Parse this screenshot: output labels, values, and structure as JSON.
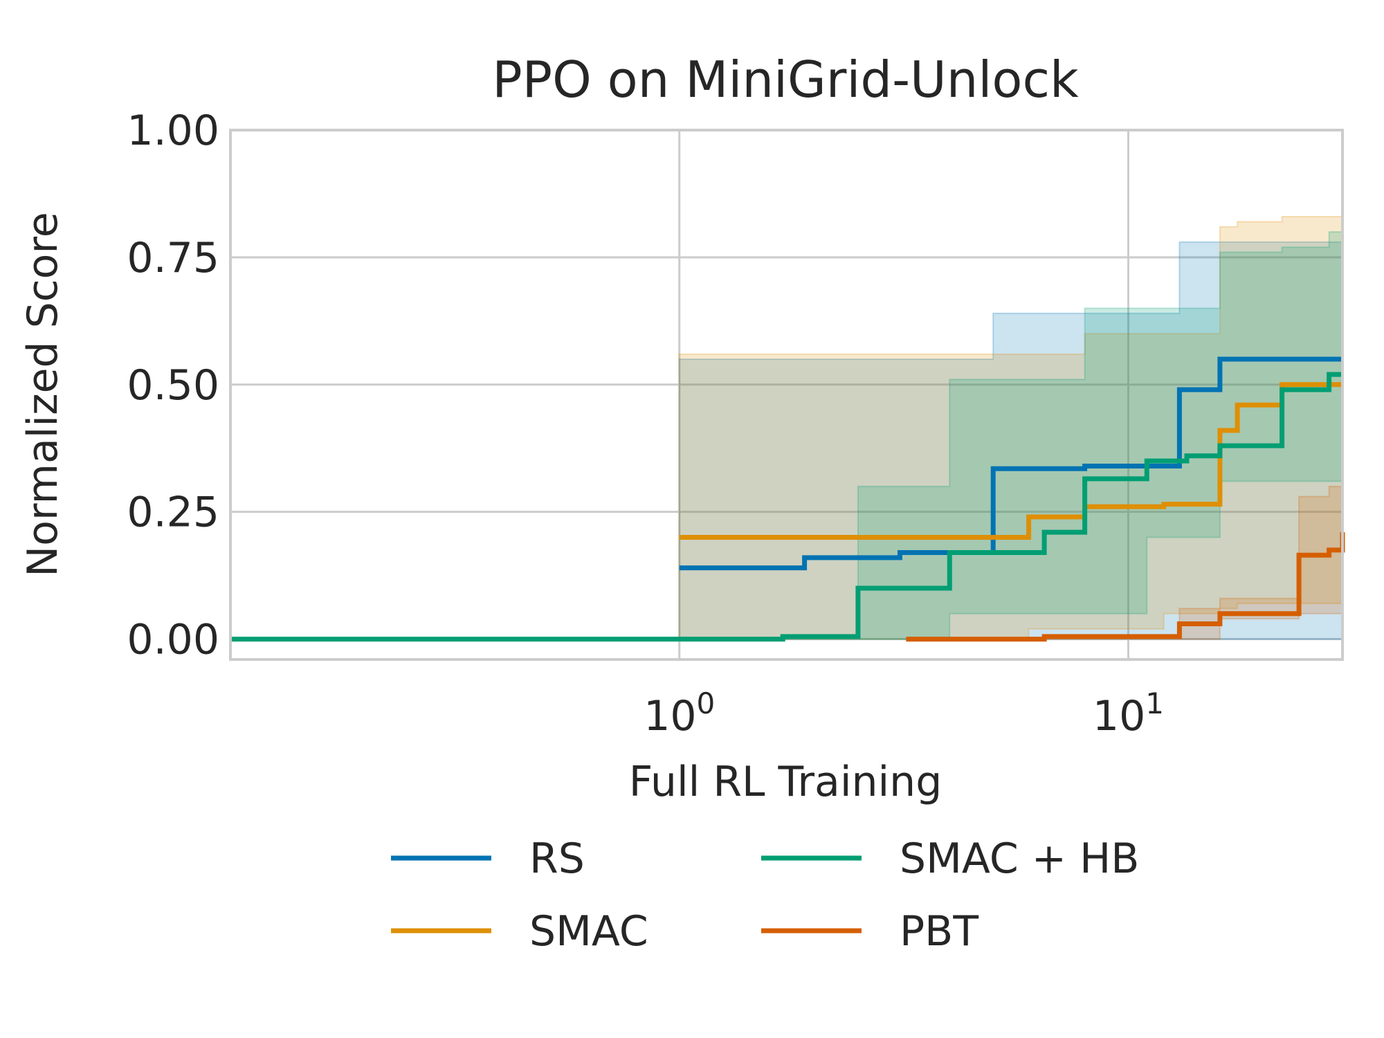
{
  "chart_data": {
    "type": "line",
    "title": "PPO on MiniGrid-Unlock",
    "xlabel": "Full RL Training",
    "ylabel": "Normalized Score",
    "xscale": "log",
    "xlim": [
      0.1,
      30
    ],
    "ylim": [
      -0.04,
      1.0
    ],
    "xticks": [
      {
        "value": 1,
        "label": "10",
        "sup": "0"
      },
      {
        "value": 10,
        "label": "10",
        "sup": "1"
      }
    ],
    "yticks": [
      {
        "value": 0.0,
        "label": "0.00"
      },
      {
        "value": 0.25,
        "label": "0.25"
      },
      {
        "value": 0.5,
        "label": "0.50"
      },
      {
        "value": 0.75,
        "label": "0.75"
      },
      {
        "value": 1.0,
        "label": "1.00"
      }
    ],
    "grid": true,
    "legend": {
      "placement": "below",
      "columns": 2
    },
    "series": [
      {
        "name": "RS",
        "color": "#0173b2",
        "x": [
          1.0,
          1.9,
          3.1,
          5.0,
          8.0,
          13.0,
          16.0,
          30
        ],
        "y": [
          0.14,
          0.16,
          0.17,
          0.335,
          0.34,
          0.49,
          0.55,
          0.55
        ],
        "lower": [
          0.0,
          0.0,
          0.0,
          0.0,
          0.0,
          0.0,
          0.0,
          0.0
        ],
        "upper": [
          0.55,
          0.55,
          0.55,
          0.64,
          0.64,
          0.78,
          0.78,
          0.78
        ]
      },
      {
        "name": "SMAC",
        "color": "#de8f05",
        "x": [
          1.0,
          6.0,
          8.0,
          12.0,
          16.0,
          17.5,
          22.0,
          30
        ],
        "y": [
          0.2,
          0.24,
          0.26,
          0.265,
          0.41,
          0.46,
          0.5,
          0.5
        ],
        "lower": [
          0.0,
          0.0,
          0.02,
          0.02,
          0.05,
          0.06,
          0.07,
          0.07
        ],
        "upper": [
          0.56,
          0.56,
          0.6,
          0.6,
          0.81,
          0.82,
          0.83,
          0.83
        ]
      },
      {
        "name": "SMAC + HB",
        "color": "#029e73",
        "x": [
          0.1,
          1.7,
          2.5,
          4.0,
          6.5,
          8.0,
          11.0,
          13.5,
          16.0,
          22.0,
          28.0,
          30
        ],
        "y": [
          0.0,
          0.005,
          0.1,
          0.17,
          0.21,
          0.315,
          0.35,
          0.36,
          0.38,
          0.49,
          0.52,
          0.52
        ],
        "lower": [
          0.0,
          0.0,
          0.0,
          0.0,
          0.05,
          0.05,
          0.05,
          0.2,
          0.2,
          0.31,
          0.31,
          0.31
        ],
        "upper": [
          0.0,
          0.0,
          0.3,
          0.51,
          0.51,
          0.65,
          0.65,
          0.65,
          0.76,
          0.77,
          0.8,
          0.8
        ]
      },
      {
        "name": "PBT",
        "color": "#d55e00",
        "x": [
          3.2,
          6.5,
          13.0,
          16.0,
          24.0,
          28.0,
          30
        ],
        "y": [
          0.0,
          0.005,
          0.03,
          0.05,
          0.165,
          0.175,
          0.21
        ],
        "lower": [
          0.0,
          0.0,
          0.0,
          0.0,
          0.04,
          0.05,
          0.05
        ],
        "upper": [
          0.0,
          0.0,
          0.06,
          0.08,
          0.28,
          0.3,
          0.3
        ]
      }
    ]
  }
}
